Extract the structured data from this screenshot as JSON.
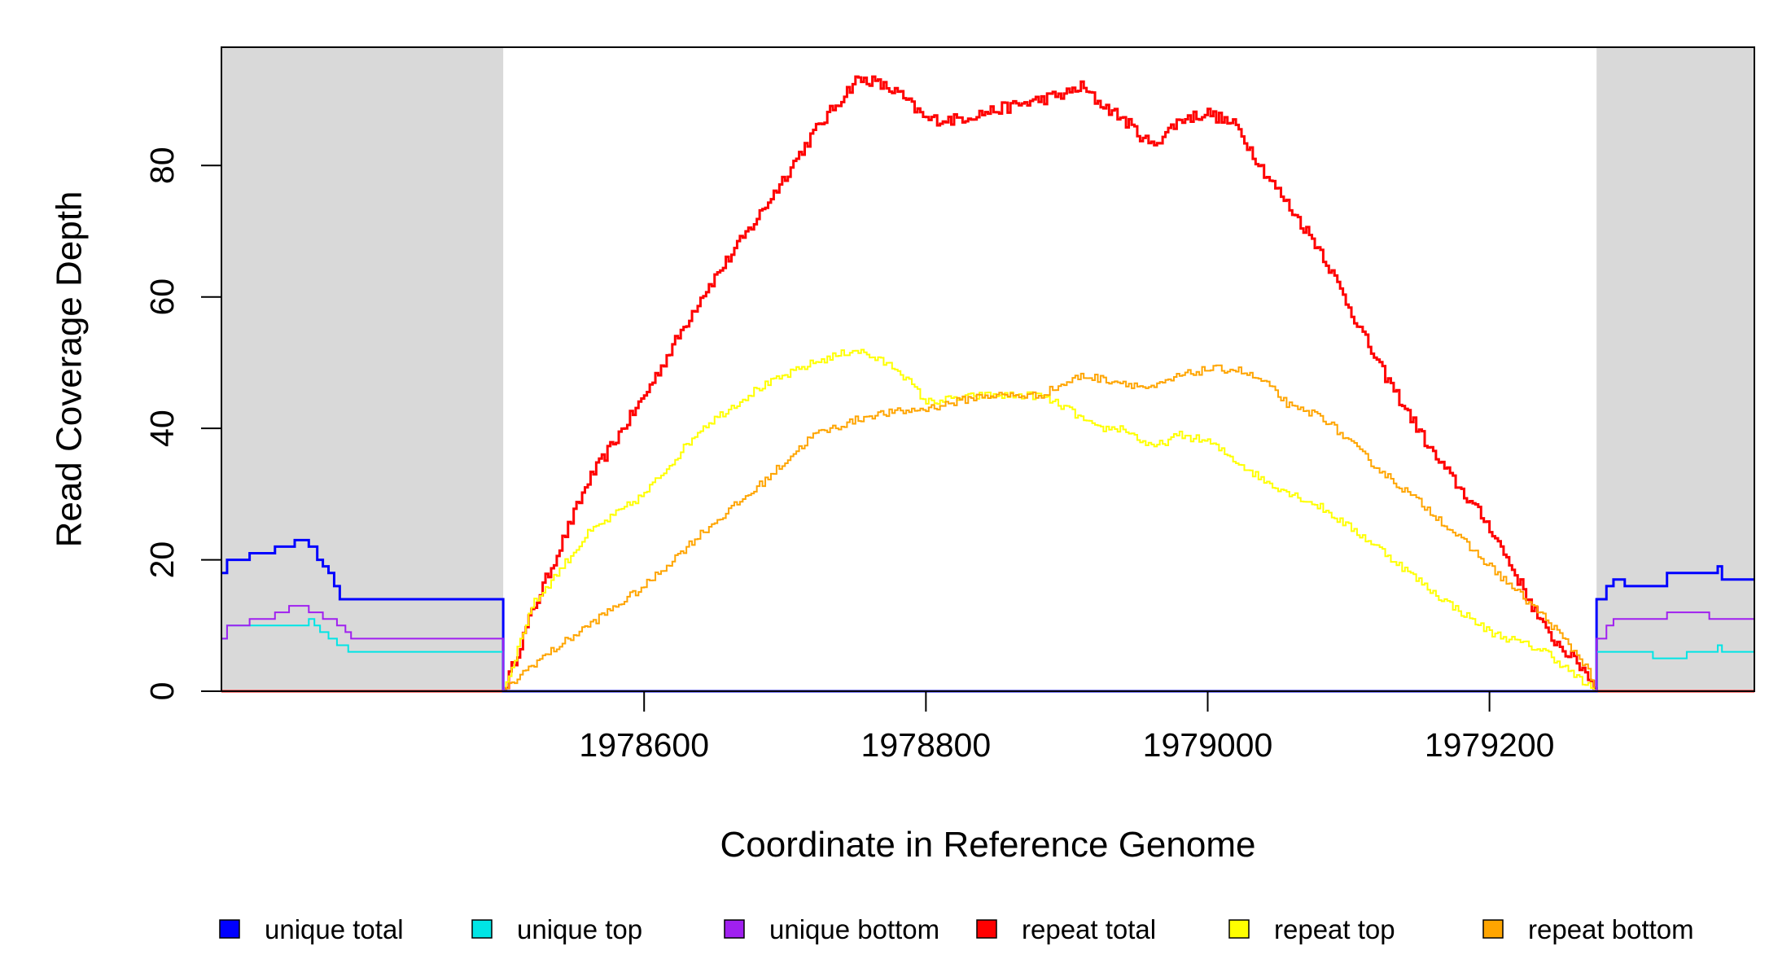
{
  "chart_data": {
    "type": "line",
    "title": "",
    "xlabel": "Coordinate in Reference Genome",
    "ylabel": "Read Coverage Depth",
    "xlim": [
      1978300,
      1979388
    ],
    "ylim": [
      0,
      98
    ],
    "xticks": [
      1978600,
      1978800,
      1979000,
      1979200
    ],
    "yticks": [
      0,
      20,
      40,
      60,
      80
    ],
    "grid": false,
    "legend_position": "bottom",
    "shaded_regions": [
      {
        "x0": 1978300,
        "x1": 1978500,
        "color": "#d9d9d9"
      },
      {
        "x0": 1979276,
        "x1": 1979388,
        "color": "#d9d9d9"
      }
    ],
    "series": [
      {
        "name": "unique total",
        "color": "#0000ff",
        "width": 3,
        "step": true,
        "x": [
          1978300,
          1978304,
          1978320,
          1978338,
          1978352,
          1978362,
          1978368,
          1978372,
          1978376,
          1978380,
          1978384,
          1978388,
          1978500,
          1978500,
          1979276,
          1979276,
          1979283,
          1979288,
          1979296,
          1979316,
          1979326,
          1979346,
          1979356,
          1979362,
          1979365,
          1979388
        ],
        "y": [
          18,
          20,
          21,
          22,
          23,
          22,
          20,
          19,
          18,
          16,
          14,
          14,
          14,
          0,
          0,
          14,
          16,
          17,
          16,
          16,
          18,
          18,
          18,
          19,
          17,
          17
        ]
      },
      {
        "name": "unique top",
        "color": "#00e5e5",
        "width": 2,
        "step": true,
        "x": [
          1978300,
          1978304,
          1978352,
          1978362,
          1978366,
          1978370,
          1978376,
          1978382,
          1978390,
          1978500,
          1978500,
          1979276,
          1979276,
          1979290,
          1979296,
          1979316,
          1979340,
          1979350,
          1979356,
          1979362,
          1979365,
          1979388
        ],
        "y": [
          8,
          10,
          10,
          11,
          10,
          9,
          8,
          7,
          6,
          6,
          0,
          0,
          6,
          6,
          6,
          5,
          6,
          6,
          6,
          7,
          6,
          6
        ]
      },
      {
        "name": "unique bottom",
        "color": "#a020f0",
        "width": 2,
        "step": true,
        "x": [
          1978300,
          1978304,
          1978320,
          1978338,
          1978348,
          1978362,
          1978368,
          1978372,
          1978376,
          1978382,
          1978388,
          1978392,
          1978500,
          1978500,
          1979276,
          1979276,
          1979283,
          1979288,
          1979296,
          1979326,
          1979346,
          1979356,
          1979362,
          1979365,
          1979388
        ],
        "y": [
          8,
          10,
          11,
          12,
          13,
          12,
          12,
          11,
          11,
          10,
          9,
          8,
          8,
          0,
          0,
          8,
          10,
          11,
          11,
          12,
          12,
          11,
          11,
          11,
          11
        ]
      },
      {
        "name": "repeat total",
        "color": "#ff0000",
        "width": 3,
        "jitter": 0.9,
        "x": [
          1978300,
          1978500,
          1978520,
          1978560,
          1978600,
          1978640,
          1978680,
          1978720,
          1978750,
          1978760,
          1978780,
          1978800,
          1978820,
          1978840,
          1978860,
          1978880,
          1978900,
          1978910,
          1978920,
          1978940,
          1978960,
          1978980,
          1979000,
          1979020,
          1979040,
          1979080,
          1979120,
          1979160,
          1979200,
          1979240,
          1979268,
          1979276,
          1979388
        ],
        "y": [
          0,
          0,
          12,
          32,
          45,
          60,
          72,
          85,
          93,
          93,
          91,
          87,
          87,
          88,
          89,
          90,
          91,
          92,
          90,
          87,
          83,
          87,
          88,
          86,
          79,
          67,
          50,
          36,
          25,
          9,
          3,
          0,
          0
        ]
      },
      {
        "name": "repeat top",
        "color": "#ffff00",
        "width": 2,
        "jitter": 0.6,
        "x": [
          1978300,
          1978500,
          1978520,
          1978560,
          1978600,
          1978640,
          1978680,
          1978720,
          1978750,
          1978760,
          1978780,
          1978800,
          1978840,
          1978880,
          1978900,
          1978920,
          1978940,
          1978960,
          1978980,
          1979000,
          1979040,
          1979080,
          1979120,
          1979160,
          1979200,
          1979240,
          1979268,
          1979276,
          1979388
        ],
        "y": [
          0,
          0,
          13,
          24,
          30,
          40,
          46,
          50,
          52,
          51,
          49,
          44,
          45,
          45,
          43,
          40,
          40,
          37,
          39,
          38,
          32,
          28,
          22,
          15,
          9,
          6,
          1,
          0,
          0
        ]
      },
      {
        "name": "repeat bottom",
        "color": "#ffa500",
        "width": 2,
        "jitter": 0.6,
        "x": [
          1978300,
          1978500,
          1978520,
          1978560,
          1978600,
          1978640,
          1978680,
          1978720,
          1978760,
          1978800,
          1978840,
          1978880,
          1978910,
          1978940,
          1978960,
          1978980,
          1979000,
          1979020,
          1979040,
          1979060,
          1979080,
          1979100,
          1979120,
          1979160,
          1979200,
          1979240,
          1979268,
          1979276,
          1979388
        ],
        "y": [
          0,
          0,
          4,
          10,
          16,
          24,
          31,
          39,
          42,
          43,
          45,
          45,
          48,
          47,
          46,
          48,
          49,
          49,
          47,
          43,
          42,
          38,
          34,
          27,
          19,
          11,
          4,
          0,
          0
        ]
      }
    ]
  }
}
